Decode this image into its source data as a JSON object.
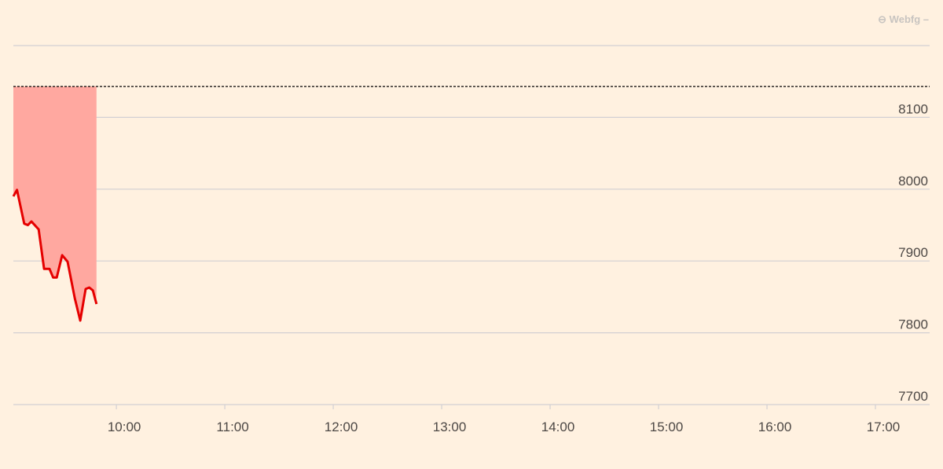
{
  "credit": "⊖ Webfg –",
  "chart_data": {
    "type": "area",
    "title": "",
    "xlabel": "",
    "ylabel": "",
    "x_ticks": [
      "10:00",
      "11:00",
      "12:00",
      "13:00",
      "14:00",
      "15:00",
      "16:00",
      "17:00"
    ],
    "y_ticks": [
      7700,
      7800,
      7900,
      8000,
      8100
    ],
    "ylim": [
      7700,
      8200
    ],
    "xlim": [
      "09:03",
      "17:30"
    ],
    "grid": true,
    "reference_line": {
      "value": 8143,
      "style": "dashed",
      "color": "#000000"
    },
    "colors": {
      "line": "#e50000",
      "fill": "#ffa8a0",
      "background": "#fff1e0",
      "grid": "#d2d0d3",
      "tick_text": "#4d4845"
    },
    "series": [
      {
        "x": [
          "09:03",
          "09:05",
          "09:09",
          "09:11",
          "09:13",
          "09:17",
          "09:20",
          "09:23",
          "09:25",
          "09:27",
          "09:30",
          "09:33",
          "09:37",
          "09:40",
          "09:43",
          "09:45",
          "09:47",
          "09:49"
        ],
        "y": [
          7990,
          7999,
          7952,
          7950,
          7955,
          7944,
          7889,
          7889,
          7877,
          7877,
          7908,
          7899,
          7848,
          7817,
          7861,
          7863,
          7859,
          7840
        ]
      }
    ]
  }
}
